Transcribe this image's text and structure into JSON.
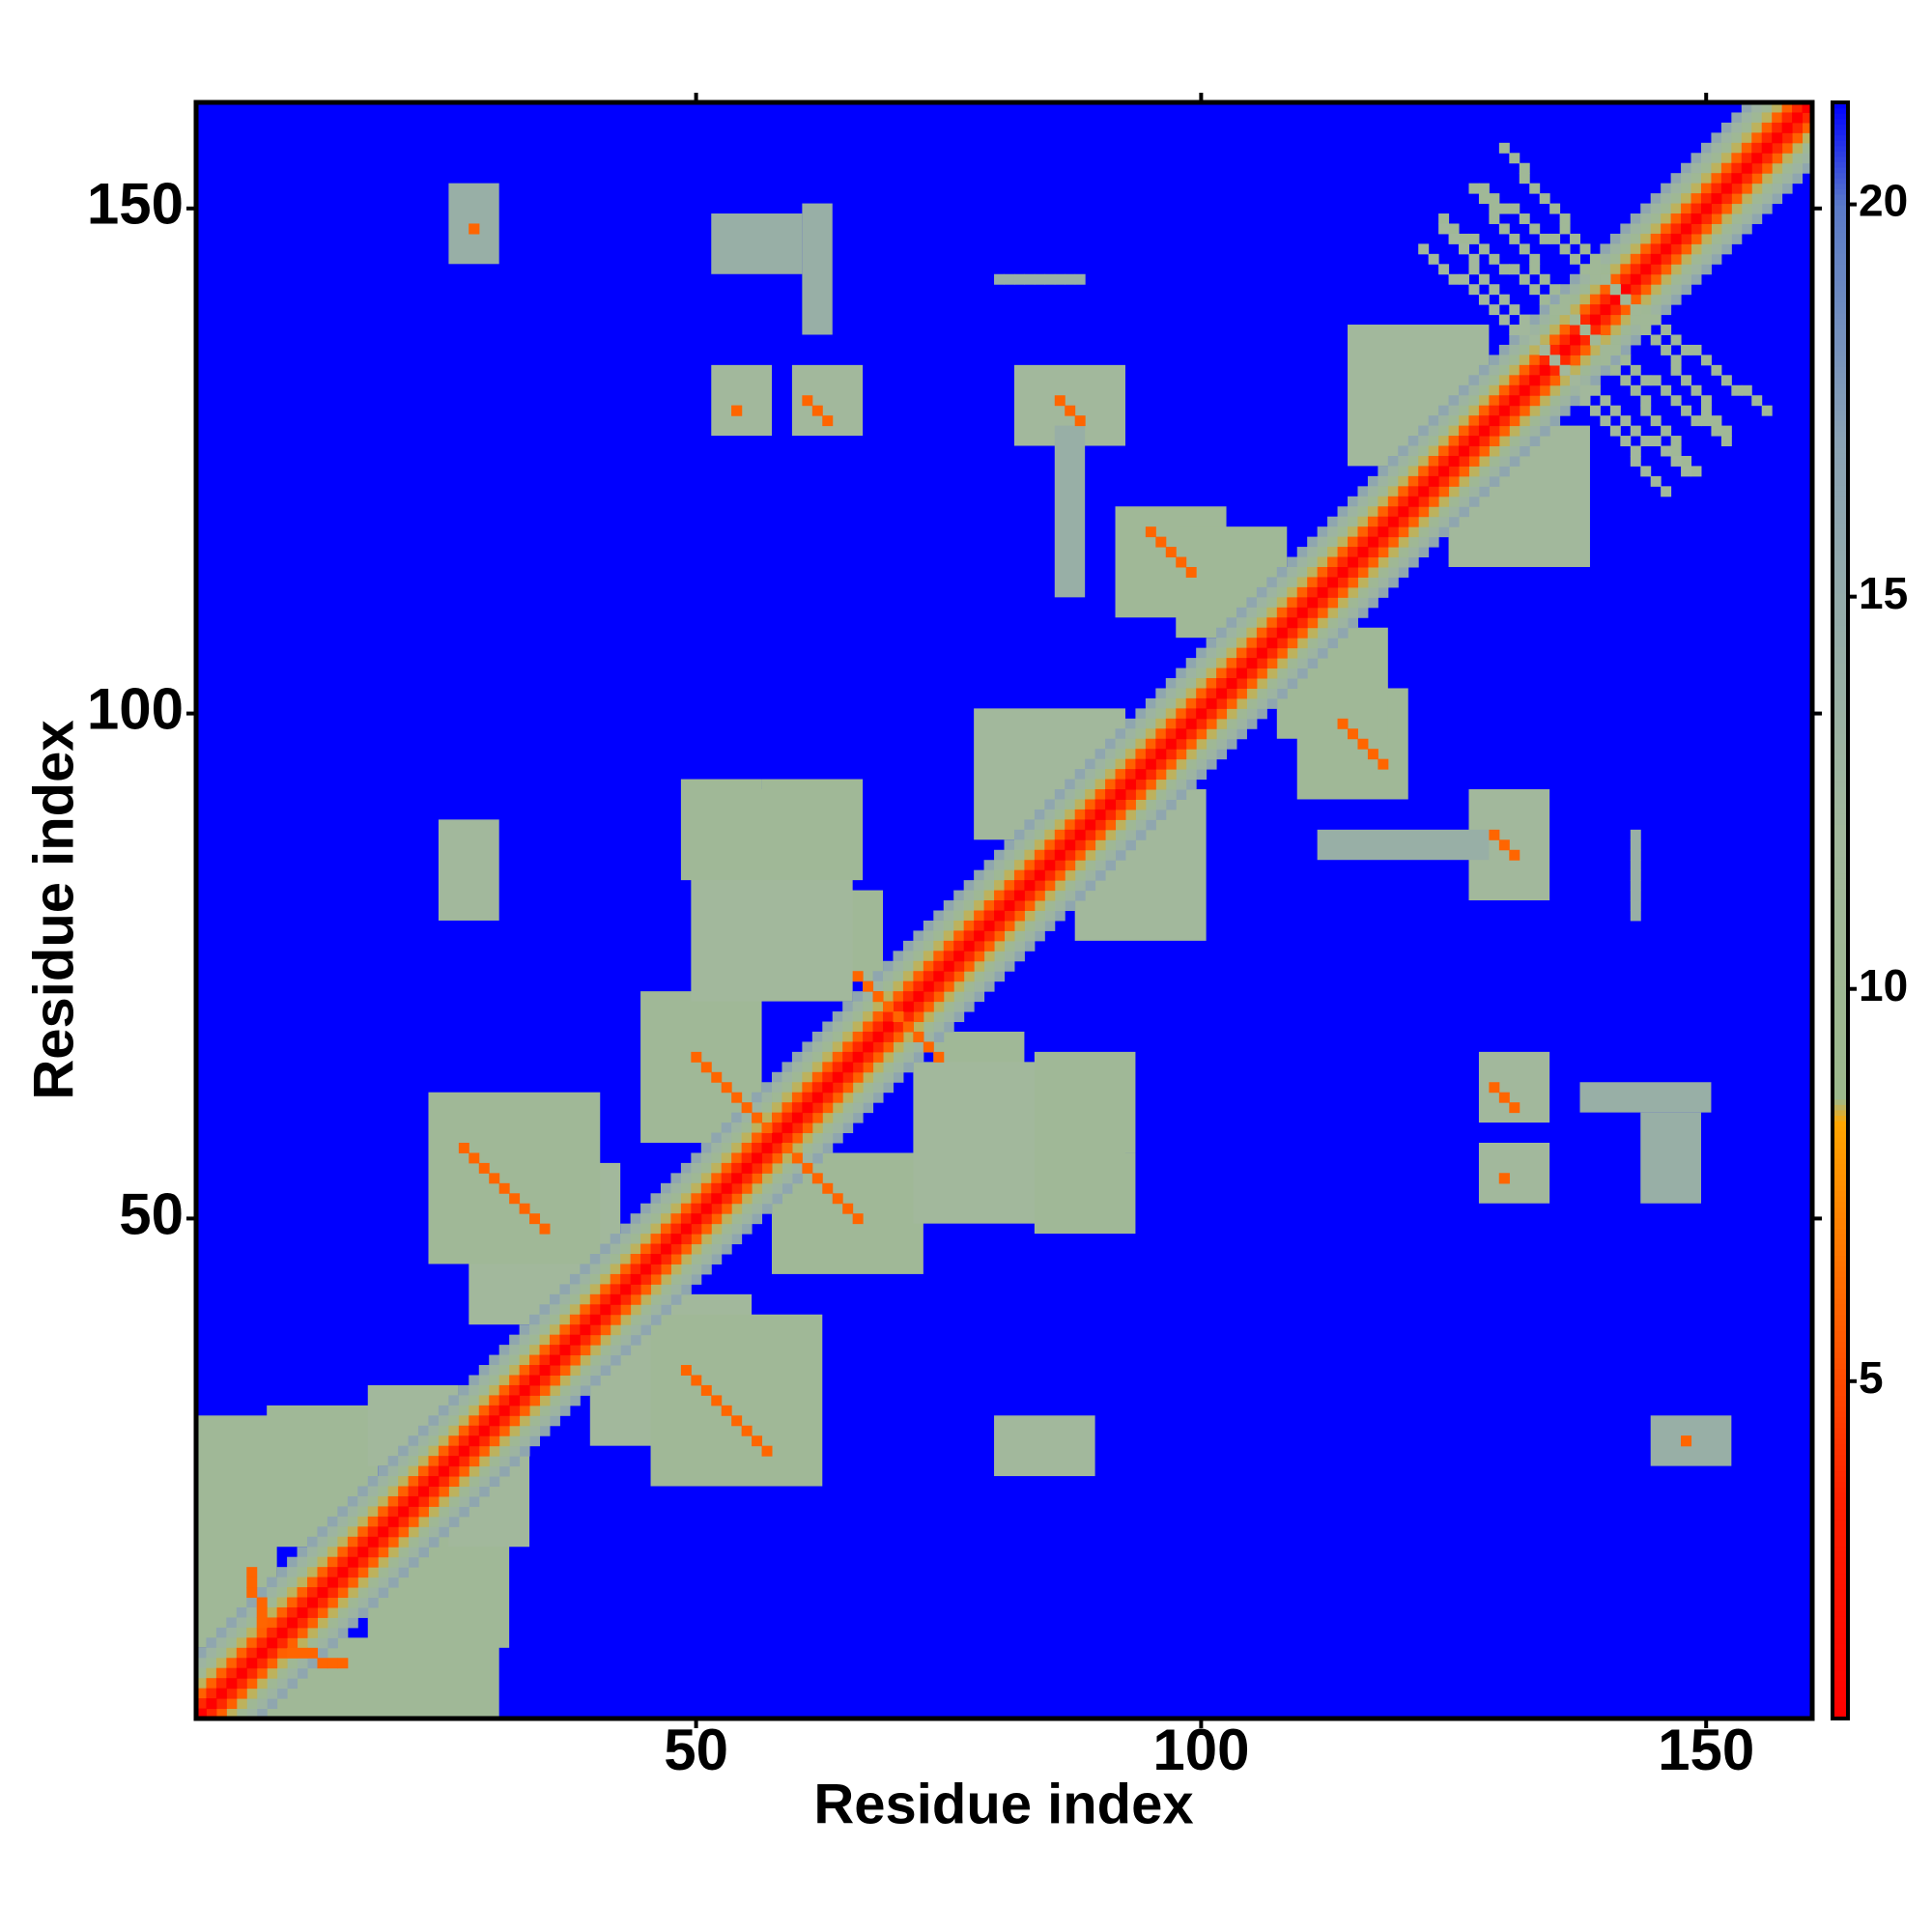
{
  "chart_data": {
    "type": "heatmap",
    "xlabel": "Residue index",
    "ylabel": "Residue index",
    "xlim": [
      0.5,
      160.5
    ],
    "ylim": [
      0.5,
      160.5
    ],
    "xticks": [
      50,
      100,
      150
    ],
    "yticks": [
      50,
      100,
      150
    ],
    "zlim": [
      0.7,
      21.3
    ],
    "zticks": [
      5,
      10,
      15,
      20
    ],
    "colorscale": [
      {
        "value": 0.7,
        "color": "#ff0000"
      },
      {
        "value": 3.5,
        "color": "#ff2000"
      },
      {
        "value": 8.3,
        "color": "#ffa500"
      },
      {
        "value": 8.6,
        "color": "#9cb88c"
      },
      {
        "value": 12,
        "color": "#a2b89c"
      },
      {
        "value": 17,
        "color": "#8aa2b4"
      },
      {
        "value": 20,
        "color": "#5a7ac8"
      },
      {
        "value": 21.3,
        "color": "#0000ff"
      }
    ],
    "symmetric": true,
    "diagonal_bands": [
      {
        "offset": 0,
        "value": 0
      },
      {
        "offset": 1,
        "value": 3.8
      },
      {
        "offset": 2,
        "value": 5.8
      },
      {
        "offset": 3,
        "value": 8.5
      },
      {
        "offset": 4,
        "value": 10.5
      },
      {
        "offset": 5,
        "value": 13
      },
      {
        "offset": 6,
        "value": 16
      }
    ],
    "blocks": [
      {
        "x": [
          1,
          8
        ],
        "y": [
          8,
          30
        ],
        "value": 11
      },
      {
        "x": [
          8,
          18
        ],
        "y": [
          18,
          31
        ],
        "value": 11
      },
      {
        "x": [
          18,
          26
        ],
        "y": [
          26,
          33
        ],
        "value": 12
      },
      {
        "x": [
          28,
          42
        ],
        "y": [
          40,
          55
        ],
        "value": 12
      },
      {
        "x": [
          24,
          40
        ],
        "y": [
          46,
          62
        ],
        "value": 11
      },
      {
        "x": [
          45,
          56
        ],
        "y": [
          58,
          72
        ],
        "value": 11
      },
      {
        "x": [
          60,
          68
        ],
        "y": [
          74,
          82
        ],
        "value": 11
      },
      {
        "x": [
          50,
          65
        ],
        "y": [
          72,
          92
        ],
        "value": 12
      },
      {
        "x": [
          49,
          56
        ],
        "y": [
          84,
          93
        ],
        "value": 11
      },
      {
        "x": [
          57,
          66
        ],
        "y": [
          84,
          93
        ],
        "value": 11
      },
      {
        "x": [
          25,
          30
        ],
        "y": [
          80,
          89
        ],
        "value": 12
      },
      {
        "x": [
          52,
          57
        ],
        "y": [
          128,
          134
        ],
        "value": 12
      },
      {
        "x": [
          60,
          66
        ],
        "y": [
          128,
          134
        ],
        "value": 12
      },
      {
        "x": [
          52,
          60
        ],
        "y": [
          144,
          149
        ],
        "value": 14
      },
      {
        "x": [
          61,
          63
        ],
        "y": [
          138,
          150
        ],
        "value": 14
      },
      {
        "x": [
          26,
          30
        ],
        "y": [
          145,
          152
        ],
        "value": 14
      },
      {
        "x": [
          82,
          92
        ],
        "y": [
          127,
          134
        ],
        "value": 12
      },
      {
        "x": [
          92,
          102
        ],
        "y": [
          110,
          120
        ],
        "value": 11
      },
      {
        "x": [
          98,
          108
        ],
        "y": [
          108,
          118
        ],
        "value": 11
      },
      {
        "x": [
          78,
          92
        ],
        "y": [
          88,
          100
        ],
        "value": 12
      },
      {
        "x": [
          115,
          128
        ],
        "y": [
          125,
          138
        ],
        "value": 12
      },
      {
        "x": [
          86,
          88
        ],
        "y": [
          112,
          128
        ],
        "value": 14
      }
    ],
    "segments": [
      {
        "from": [
          6,
          15
        ],
        "to": [
          7,
          10
        ],
        "value": 6
      },
      {
        "from": [
          27,
          57
        ],
        "to": [
          35,
          49
        ],
        "value": 6
      },
      {
        "from": [
          50,
          66
        ],
        "to": [
          57,
          59
        ],
        "value": 6
      },
      {
        "from": [
          66,
          74
        ],
        "to": [
          72,
          68
        ],
        "value": 6
      },
      {
        "from": [
          61,
          131
        ],
        "to": [
          63,
          129
        ],
        "value": 6
      },
      {
        "from": [
          54,
          130
        ],
        "to": [
          54,
          130
        ],
        "value": 6
      },
      {
        "from": [
          28,
          148
        ],
        "to": [
          28,
          148
        ],
        "value": 6
      },
      {
        "from": [
          86,
          131
        ],
        "to": [
          88,
          129
        ],
        "value": 6
      },
      {
        "from": [
          95,
          118
        ],
        "to": [
          99,
          114
        ],
        "value": 6
      },
      {
        "from": [
          124,
          149
        ],
        "to": [
          152,
          127
        ],
        "value": 11
      },
      {
        "from": [
          128,
          152
        ],
        "to": [
          156,
          130
        ],
        "value": 11
      },
      {
        "from": [
          122,
          146
        ],
        "to": [
          148,
          124
        ],
        "value": 12
      },
      {
        "from": [
          80,
          143
        ],
        "to": [
          88,
          143
        ],
        "value": 14
      }
    ]
  }
}
